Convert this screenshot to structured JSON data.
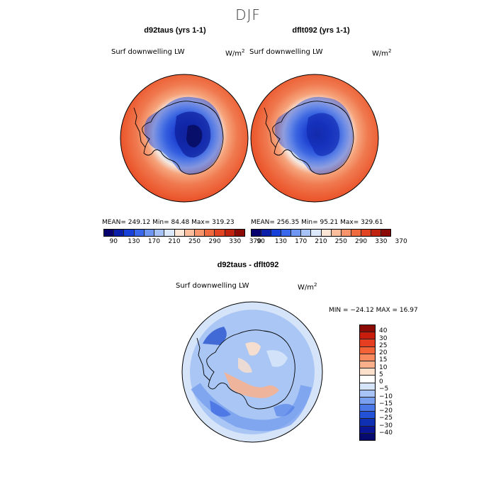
{
  "figure": {
    "title": "DJF"
  },
  "panel_left": {
    "title": "d92taus (yrs 1-1)",
    "variable": "Surf downwelling LW",
    "units": "W/m",
    "units_exp": "2",
    "stats": "MEAN= 249.12   Min=  84.48   Max= 319.23"
  },
  "panel_right": {
    "title": "dflt092 (yrs 1-1)",
    "variable": "Surf downwelling LW",
    "units": "W/m",
    "units_exp": "2",
    "stats": "MEAN= 256.35   Min=  95.21   Max= 329.61"
  },
  "colorbar_top": {
    "ticks": [
      "90",
      "130",
      "170",
      "210",
      "250",
      "290",
      "330",
      "370"
    ],
    "colors": [
      "#08006e",
      "#0a1ea8",
      "#1640d8",
      "#3a68ea",
      "#6e96f2",
      "#a6c2f8",
      "#dce8fb",
      "#fde6d6",
      "#fbbd9c",
      "#f8946c",
      "#f06a40",
      "#e04422",
      "#c02410",
      "#8c0a04"
    ]
  },
  "panel_diff": {
    "title": "d92taus - dflt092",
    "variable": "Surf downwelling LW",
    "units": "W/m",
    "units_exp": "2",
    "stats": "MIN = −24.12 MAX =  16.97"
  },
  "colorbar_diff": {
    "labels": [
      "40",
      "30",
      "25",
      "20",
      "15",
      "10",
      "5",
      "0",
      "−5",
      "−10",
      "−15",
      "−20",
      "−25",
      "−30",
      "−40"
    ],
    "colors": [
      "#8c0a04",
      "#c81c0c",
      "#e63e20",
      "#f46238",
      "#f88a60",
      "#fbb08c",
      "#fde0cc",
      "#ffffff",
      "#d6e4fa",
      "#a8c4f6",
      "#7aa0f0",
      "#4a78e6",
      "#2452d6",
      "#1030b4",
      "#0a1696",
      "#060a6e"
    ]
  }
}
